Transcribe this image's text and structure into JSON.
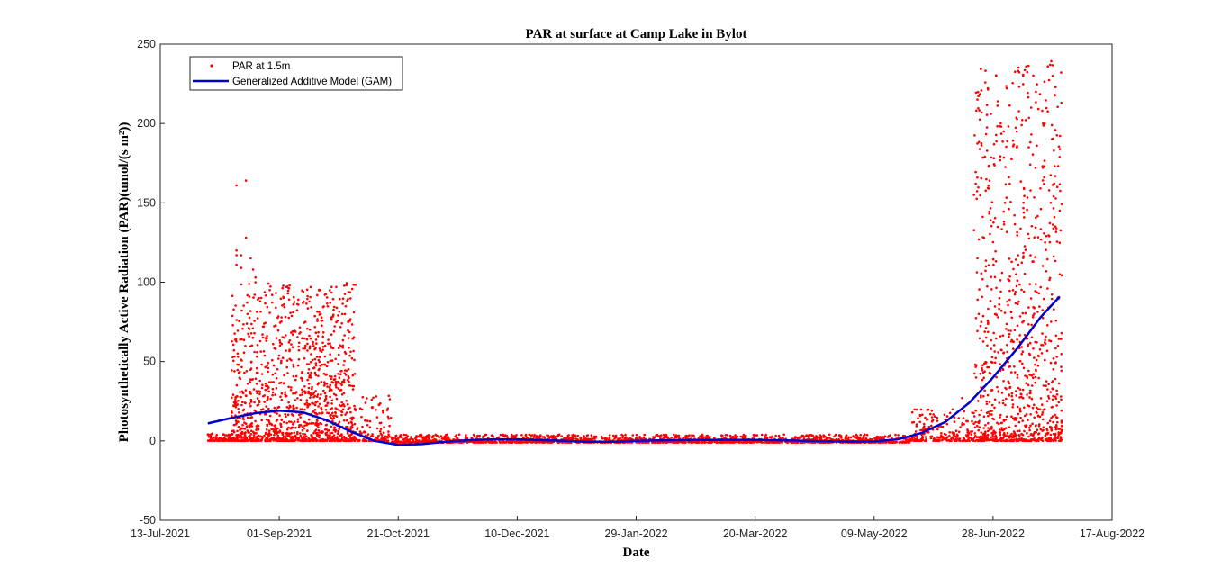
{
  "chart_data": {
    "type": "scatter",
    "title": "PAR at surface at Camp Lake in Bylot",
    "xlabel": "Date",
    "ylabel": "Photosynthetically Active Radiation (PAR)(umol/(s m²))",
    "xlim": [
      "2021-07-13",
      "2022-08-17"
    ],
    "ylim": [
      -50,
      250
    ],
    "x_ticks": [
      "13-Jul-2021",
      "01-Sep-2021",
      "21-Oct-2021",
      "10-Dec-2021",
      "29-Jan-2022",
      "20-Mar-2022",
      "09-May-2022",
      "28-Jun-2022",
      "17-Aug-2022"
    ],
    "y_ticks": [
      -50,
      0,
      50,
      100,
      150,
      200,
      250
    ],
    "legend": {
      "placement": "top-left",
      "boxed": true
    },
    "grid": false,
    "series": [
      {
        "name": "PAR at 1.5m",
        "kind": "scatter",
        "color": "#ff0000",
        "note_ranges": [
          {
            "from": "2021-08-02",
            "to": "2021-08-12",
            "min": 0,
            "max": 5
          },
          {
            "from": "2021-08-12",
            "to": "2021-10-03",
            "min": 0,
            "max": 100
          },
          {
            "from": "2021-10-03",
            "to": "2021-10-18",
            "min": 0,
            "max": 30
          },
          {
            "from": "2021-10-18",
            "to": "2022-05-25",
            "min": -1,
            "max": 4
          },
          {
            "from": "2022-05-25",
            "to": "2022-06-20",
            "min": 0,
            "max": 20
          },
          {
            "from": "2022-06-20",
            "to": "2022-07-27",
            "min": 0,
            "max": 240
          }
        ],
        "points": [
          [
            "2021-08-14",
            161
          ],
          [
            "2021-08-14",
            120
          ],
          [
            "2021-08-14",
            117
          ],
          [
            "2021-08-14",
            111
          ],
          [
            "2021-08-16",
            117
          ],
          [
            "2021-08-16",
            109
          ],
          [
            "2021-08-18",
            164
          ],
          [
            "2021-08-18",
            128
          ],
          [
            "2021-08-20",
            115
          ],
          [
            "2021-08-21",
            108
          ],
          [
            "2021-08-22",
            103
          ],
          [
            "2021-08-22",
            100
          ],
          [
            "2021-08-24",
            88
          ],
          [
            "2021-08-28",
            95
          ],
          [
            "2021-08-29",
            92
          ],
          [
            "2021-09-03",
            86
          ],
          [
            "2021-09-04",
            97
          ],
          [
            "2021-09-07",
            86
          ],
          [
            "2021-09-09",
            89
          ],
          [
            "2021-09-12",
            75
          ],
          [
            "2021-09-12",
            60
          ],
          [
            "2021-09-19",
            48
          ],
          [
            "2021-09-20",
            37
          ],
          [
            "2021-09-23",
            32
          ],
          [
            "2021-09-28",
            23
          ],
          [
            "2021-10-01",
            18
          ],
          [
            "2022-06-15",
            27
          ],
          [
            "2022-06-22",
            80
          ],
          [
            "2022-06-25",
            110
          ],
          [
            "2022-06-27",
            139
          ],
          [
            "2022-06-30",
            214
          ],
          [
            "2022-07-03",
            150
          ],
          [
            "2022-07-05",
            162
          ],
          [
            "2022-07-08",
            185
          ],
          [
            "2022-07-10",
            199
          ],
          [
            "2022-07-13",
            185
          ],
          [
            "2022-07-14",
            210
          ],
          [
            "2022-07-16",
            220
          ],
          [
            "2022-07-19",
            200
          ],
          [
            "2022-07-21",
            236
          ],
          [
            "2022-07-22",
            237
          ],
          [
            "2022-07-23",
            230
          ],
          [
            "2022-07-24",
            218
          ],
          [
            "2022-07-25",
            160
          ],
          [
            "2022-07-26",
            145
          ],
          [
            "2022-07-26",
            105
          ]
        ]
      },
      {
        "name": "Generalized Additive Model (GAM)",
        "kind": "line",
        "color": "#0000cc",
        "points": [
          [
            "2021-08-02",
            11
          ],
          [
            "2021-08-12",
            14.5
          ],
          [
            "2021-08-22",
            17.5
          ],
          [
            "2021-09-01",
            19
          ],
          [
            "2021-09-11",
            18
          ],
          [
            "2021-09-21",
            13
          ],
          [
            "2021-10-01",
            6
          ],
          [
            "2021-10-11",
            0
          ],
          [
            "2021-10-21",
            -2.5
          ],
          [
            "2021-10-31",
            -2
          ],
          [
            "2021-11-10",
            -0.5
          ],
          [
            "2021-11-20",
            0.5
          ],
          [
            "2021-11-30",
            1
          ],
          [
            "2021-12-10",
            1
          ],
          [
            "2021-12-20",
            0.5
          ],
          [
            "2021-12-30",
            0
          ],
          [
            "2022-01-09",
            -0.5
          ],
          [
            "2022-01-19",
            -0.5
          ],
          [
            "2022-01-29",
            0
          ],
          [
            "2022-02-08",
            0.3
          ],
          [
            "2022-02-18",
            0.5
          ],
          [
            "2022-02-28",
            0.6
          ],
          [
            "2022-03-10",
            0.7
          ],
          [
            "2022-03-20",
            0.6
          ],
          [
            "2022-03-30",
            0.4
          ],
          [
            "2022-04-09",
            0.1
          ],
          [
            "2022-04-19",
            -0.2
          ],
          [
            "2022-04-29",
            -0.4
          ],
          [
            "2022-05-09",
            -0.3
          ],
          [
            "2022-05-19",
            1
          ],
          [
            "2022-05-29",
            5
          ],
          [
            "2022-06-08",
            12
          ],
          [
            "2022-06-18",
            24
          ],
          [
            "2022-06-28",
            40
          ],
          [
            "2022-07-08",
            58
          ],
          [
            "2022-07-18",
            78
          ],
          [
            "2022-07-26",
            91
          ]
        ]
      }
    ]
  }
}
